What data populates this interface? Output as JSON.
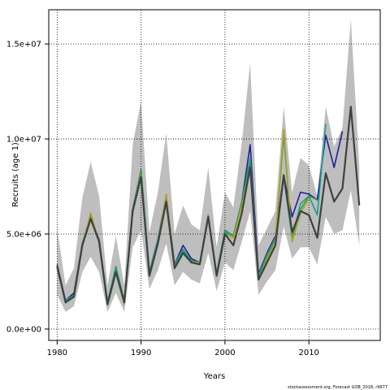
{
  "chart_data": {
    "type": "line",
    "xlabel": "Years",
    "ylabel": "Recruits (age 1)",
    "xlim": [
      1979.0,
      2018.5
    ],
    "ylim": [
      -600000,
      16800000
    ],
    "xticks": [
      1980,
      1990,
      2000,
      2010
    ],
    "xtick_labels": [
      "1980",
      "1990",
      "2000",
      "2010"
    ],
    "yticks": [
      0,
      5000000,
      10000000,
      15000000
    ],
    "ytick_labels": [
      "0.0e+00",
      "5.0e+06",
      "1.0e+07",
      "1.5e+07"
    ],
    "grid": true,
    "grid_style": "dotted",
    "band": {
      "color": "#bebebe",
      "x": [
        1980,
        1981,
        1982,
        1983,
        1984,
        1985,
        1986,
        1987,
        1988,
        1989,
        1990,
        1991,
        1992,
        1993,
        1994,
        1995,
        1996,
        1997,
        1998,
        1999,
        2000,
        2001,
        2002,
        2003,
        2004,
        2005,
        2006,
        2007,
        2008,
        2009,
        2010,
        2011,
        2012,
        2013,
        2014,
        2015,
        2016
      ],
      "upper": [
        5300000,
        2300000,
        3200000,
        6900000,
        8800000,
        7000000,
        2300000,
        4900000,
        2300000,
        9700000,
        12000000,
        5100000,
        7200000,
        10300000,
        5000000,
        6500000,
        5500000,
        5200000,
        8500000,
        4300000,
        7200000,
        6400000,
        9800000,
        14000000,
        4400000,
        5300000,
        6200000,
        11700000,
        7200000,
        9000000,
        8600000,
        7000000,
        11700000,
        9600000,
        10600000,
        16300000,
        8600000
      ],
      "lower": [
        1800000,
        900000,
        1200000,
        3000000,
        3800000,
        3000000,
        900000,
        1900000,
        900000,
        4300000,
        5200000,
        2100000,
        3100000,
        4500000,
        2300000,
        3000000,
        2600000,
        2400000,
        4000000,
        2000000,
        3500000,
        3100000,
        4600000,
        6200000,
        1800000,
        2500000,
        3100000,
        5400000,
        3700000,
        4300000,
        4300000,
        3400000,
        5900000,
        5000000,
        5200000,
        7300000,
        4400000
      ]
    },
    "series": [
      {
        "color": "#1f1f9e",
        "width": 1.6,
        "x": [
          1980,
          1981,
          1982,
          1983,
          1984,
          1985,
          1986,
          1987,
          1988,
          1989,
          1990,
          1991,
          1992,
          1993,
          1994,
          1995,
          1996,
          1997,
          1998,
          1999,
          2000,
          2001,
          2002,
          2003,
          2004,
          2005,
          2006,
          2007,
          2008,
          2009,
          2010,
          2011,
          2012,
          2013,
          2014
        ],
        "values": [
          3400000,
          1500000,
          1900000,
          4500000,
          5900000,
          4700000,
          1400000,
          3200000,
          1500000,
          6300000,
          8300000,
          3000000,
          4700000,
          7000000,
          3400000,
          4400000,
          3700000,
          3500000,
          6000000,
          2900000,
          5200000,
          4900000,
          6700000,
          9700000,
          2900000,
          4000000,
          4900000,
          8100000,
          5900000,
          7200000,
          7100000,
          6800000,
          10200000,
          8500000,
          10400000
        ]
      },
      {
        "color": "#1a9e8e",
        "width": 1.6,
        "x": [
          1980,
          1981,
          1982,
          1983,
          1984,
          1985,
          1986,
          1987,
          1988,
          1989,
          1990,
          1991,
          1992,
          1993,
          1994,
          1995,
          1996,
          1997,
          1998,
          1999,
          2000,
          2001,
          2002,
          2003,
          2004,
          2005,
          2006,
          2007,
          2008,
          2009,
          2010,
          2011,
          2012
        ],
        "values": [
          3300000,
          1500000,
          1800000,
          4500000,
          5900000,
          4700000,
          1400000,
          3300000,
          1500000,
          6300000,
          8400000,
          3000000,
          4700000,
          7000000,
          3400000,
          4200000,
          3600000,
          3500000,
          6000000,
          2900000,
          5200000,
          4900000,
          6700000,
          9000000,
          2800000,
          3900000,
          4800000,
          8000000,
          4800000,
          6600000,
          7000000,
          6000000,
          10800000
        ]
      },
      {
        "color": "#3a9a3a",
        "width": 1.6,
        "x": [
          1980,
          1981,
          1982,
          1983,
          1984,
          1985,
          1986,
          1987,
          1988,
          1989,
          1990,
          1991,
          1992,
          1993,
          1994,
          1995,
          1996,
          1997,
          1998,
          1999,
          2000,
          2001,
          2002,
          2003,
          2004,
          2005,
          2006,
          2007,
          2008,
          2009,
          2010,
          2011
        ],
        "values": [
          3300000,
          1400000,
          1800000,
          4400000,
          6000000,
          4600000,
          1400000,
          3100000,
          1500000,
          6200000,
          8300000,
          2900000,
          4600000,
          7000000,
          3300000,
          4100000,
          3600000,
          3500000,
          6000000,
          2900000,
          5100000,
          4900000,
          6600000,
          8800000,
          2700000,
          3800000,
          4700000,
          10200000,
          4700000,
          6300000,
          7000000,
          6800000
        ]
      },
      {
        "color": "#a8a02a",
        "width": 1.6,
        "x": [
          1980,
          1981,
          1982,
          1983,
          1984,
          1985,
          1986,
          1987,
          1988,
          1989,
          1990,
          1991,
          1992,
          1993,
          1994,
          1995,
          1996,
          1997,
          1998,
          1999,
          2000,
          2001,
          2002,
          2003,
          2004,
          2005,
          2006,
          2007,
          2008,
          2009,
          2010
        ],
        "values": [
          3200000,
          1400000,
          1700000,
          4400000,
          6100000,
          4600000,
          1300000,
          3000000,
          1300000,
          6100000,
          8100000,
          2800000,
          4500000,
          7100000,
          3200000,
          4000000,
          3500000,
          3500000,
          6000000,
          2800000,
          5000000,
          4800000,
          6500000,
          8400000,
          2600000,
          3700000,
          4600000,
          10500000,
          4600000,
          6100000,
          6900000
        ]
      },
      {
        "color": "#404040",
        "width": 2.2,
        "x": [
          1980,
          1981,
          1982,
          1983,
          1984,
          1985,
          1986,
          1987,
          1988,
          1989,
          1990,
          1991,
          1992,
          1993,
          1994,
          1995,
          1996,
          1997,
          1998,
          1999,
          2000,
          2001,
          2002,
          2003,
          2004,
          2005,
          2006,
          2007,
          2008,
          2009,
          2010,
          2011,
          2012,
          2013,
          2014,
          2015,
          2016
        ],
        "values": [
          3300000,
          1400000,
          1700000,
          4400000,
          5800000,
          4600000,
          1300000,
          3000000,
          1400000,
          6200000,
          8000000,
          2800000,
          4500000,
          6700000,
          3200000,
          4000000,
          3500000,
          3400000,
          5900000,
          2800000,
          5000000,
          4400000,
          6100000,
          8500000,
          2600000,
          3500000,
          4400000,
          8100000,
          5100000,
          6200000,
          6000000,
          4800000,
          8200000,
          6700000,
          7400000,
          11700000,
          6500000
        ]
      }
    ]
  },
  "footer": {
    "source_note": "stockassessment.org, Forecast  GOB_2018, r9677"
  }
}
